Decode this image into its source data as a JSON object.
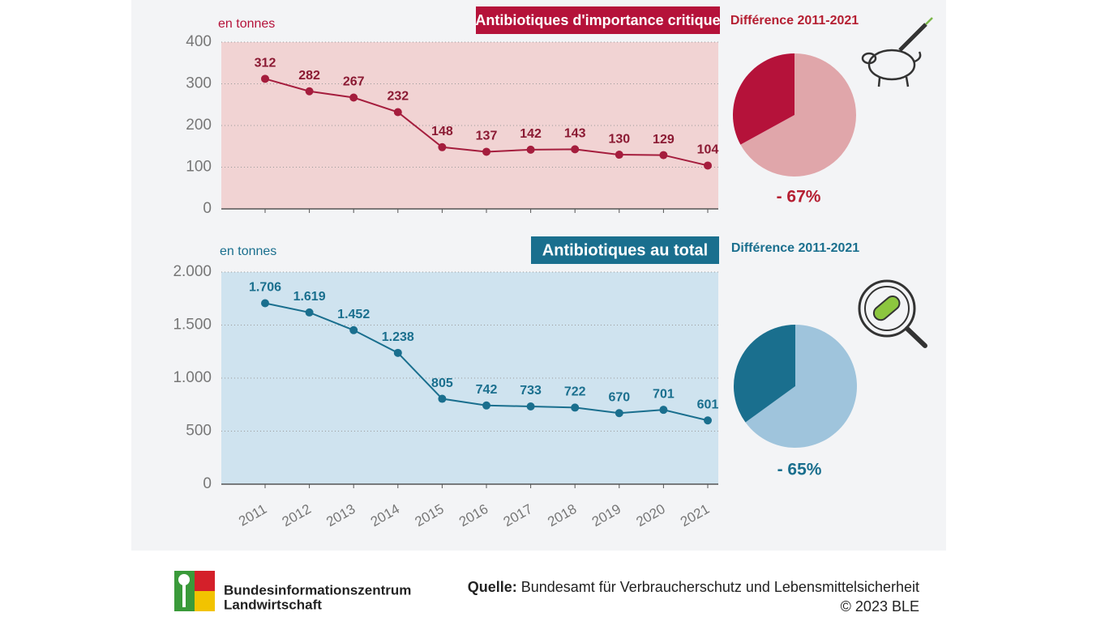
{
  "chart_data": [
    {
      "type": "line",
      "title": "Antibiotiques d'importance critique",
      "unit_label": "en tonnes",
      "categories": [
        null,
        null,
        null,
        null,
        null,
        null,
        null,
        null,
        null,
        null,
        null
      ],
      "series": [
        {
          "color": "#a51d3d",
          "values": [
            312,
            282,
            267,
            232,
            148,
            137,
            142,
            143,
            130,
            129,
            104
          ]
        }
      ],
      "title_color": "#b5123a",
      "label_color": "#8b1a33",
      "plot_color": "#f1d3d3",
      "ylim": [
        0,
        400
      ],
      "yticks": [
        0,
        100,
        200,
        300,
        400
      ],
      "grid": true
    },
    {
      "type": "pie",
      "title": "Différence 2011-2021",
      "annotation": "- 67%",
      "values": [
        67,
        33
      ],
      "colors": [
        "#e0a6aa",
        "#b5123a"
      ],
      "label_color": "#b51f32"
    },
    {
      "type": "line",
      "title": "Antibiotiques au total",
      "unit_label": "en tonnes",
      "categories": [
        "2011",
        "2012",
        "2013",
        "2014",
        "2015",
        "2016",
        "2017",
        "2018",
        "2019",
        "2020",
        "2021"
      ],
      "series": [
        {
          "color": "#1a6f8e",
          "values": [
            1706,
            1619,
            1452,
            1238,
            805,
            742,
            733,
            722,
            670,
            701,
            601
          ],
          "value_labels": [
            "1.706",
            "1.619",
            "1.452",
            "1.238",
            "805",
            "742",
            "733",
            "722",
            "670",
            "701",
            "601"
          ]
        }
      ],
      "title_color": "#1a6f8e",
      "label_color": "#1a6f8e",
      "plot_color": "#cfe3ef",
      "ylim": [
        0,
        2000
      ],
      "yticks": [
        0,
        500,
        {
          "value": 1000,
          "label": "1.000"
        },
        {
          "value": 1500,
          "label": "1.500"
        },
        {
          "value": 2000,
          "label": "2.000"
        }
      ],
      "grid": true
    },
    {
      "type": "pie",
      "title": "Différence 2011-2021",
      "annotation": "- 65%",
      "values": [
        65,
        35
      ],
      "colors": [
        "#9fc4dc",
        "#1a6f8e"
      ],
      "label_color": "#1a6f8e"
    }
  ],
  "footer": {
    "logo_lines": [
      "Bundesinformationszentrum",
      "Landwirtschaft"
    ],
    "source_label": "Quelle:",
    "source": "Bundesamt für Verbraucherschutz und Lebensmittelsicherheit",
    "copyright": "© 2023 BLE"
  }
}
